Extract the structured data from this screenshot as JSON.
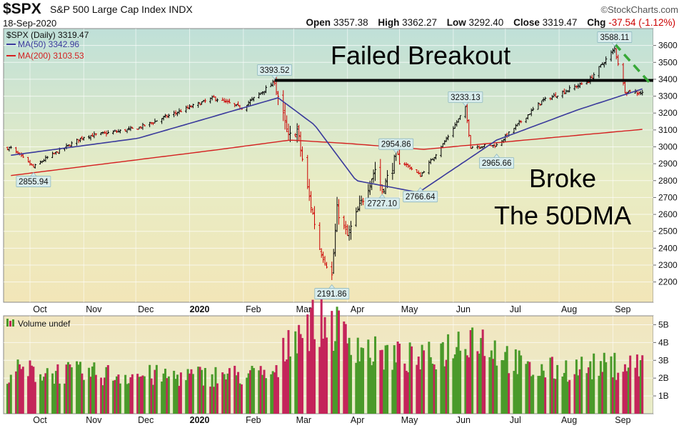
{
  "header": {
    "symbol": "$SPX",
    "name": "S&P 500 Large Cap Index",
    "exchange": "INDX",
    "date": "18-Sep-2020",
    "brand": "©StockCharts.com",
    "open_label": "Open",
    "open": "3357.38",
    "high_label": "High",
    "high": "3362.27",
    "low_label": "Low",
    "low": "3292.40",
    "close_label": "Close",
    "close": "3319.47",
    "chg_label": "Chg",
    "chg": "-37.54 (-1.12%)"
  },
  "legend": {
    "price": "$SPX (Daily) 3319.47",
    "ma50": "MA(50) 3342.96",
    "ma200": "MA(200) 3103.53",
    "volume": "Volume undef"
  },
  "annotations": {
    "failed_breakout": "Failed Breakout",
    "broke_line1": "Broke",
    "broke_line2": "The 50DMA"
  },
  "colors": {
    "up": "#000000",
    "down": "#cc0000",
    "ma50": "#3a3a9c",
    "ma200": "#d42020",
    "vol_up": "#4a9a2a",
    "vol_down": "#c4245a",
    "trend": "#38a838"
  },
  "chart_data": [
    {
      "type": "candlestick",
      "title": "$SPX (Daily)",
      "y_axis_side": "right",
      "ylim": [
        2080,
        3700
      ],
      "y_ticks": [
        2200,
        2300,
        2400,
        2500,
        2600,
        2700,
        2800,
        2900,
        3000,
        3100,
        3200,
        3300,
        3400,
        3500,
        3600
      ],
      "x_tick_labels": [
        "Oct",
        "Nov",
        "Dec",
        "2020",
        "Feb",
        "Mar",
        "Apr",
        "May",
        "Jun",
        "Jul",
        "Aug",
        "Sep"
      ],
      "price_points": [
        {
          "date": "2019-09-20",
          "close": 2992
        },
        {
          "date": "2019-10-03",
          "close": 2880
        },
        {
          "date": "2019-10-10",
          "close": 2930
        },
        {
          "date": "2019-11-01",
          "close": 3060
        },
        {
          "date": "2019-12-02",
          "close": 3110
        },
        {
          "date": "2019-12-31",
          "close": 3230
        },
        {
          "date": "2020-01-15",
          "close": 3290
        },
        {
          "date": "2020-01-31",
          "close": 3230
        },
        {
          "date": "2020-02-19",
          "close": 3385
        },
        {
          "date": "2020-02-27",
          "close": 3050
        },
        {
          "date": "2020-03-03",
          "close": 3100
        },
        {
          "date": "2020-03-09",
          "close": 2750
        },
        {
          "date": "2020-03-16",
          "close": 2400
        },
        {
          "date": "2020-03-23",
          "close": 2237
        },
        {
          "date": "2020-03-26",
          "close": 2630
        },
        {
          "date": "2020-04-01",
          "close": 2470
        },
        {
          "date": "2020-04-17",
          "close": 2870
        },
        {
          "date": "2020-04-21",
          "close": 2740
        },
        {
          "date": "2020-04-29",
          "close": 2940
        },
        {
          "date": "2020-05-13",
          "close": 2830
        },
        {
          "date": "2020-05-27",
          "close": 3030
        },
        {
          "date": "2020-06-08",
          "close": 3230
        },
        {
          "date": "2020-06-11",
          "close": 3000
        },
        {
          "date": "2020-06-26",
          "close": 3010
        },
        {
          "date": "2020-07-22",
          "close": 3270
        },
        {
          "date": "2020-08-18",
          "close": 3390
        },
        {
          "date": "2020-09-02",
          "close": 3580
        },
        {
          "date": "2020-09-08",
          "close": 3330
        },
        {
          "date": "2020-09-18",
          "close": 3319
        }
      ],
      "ma50_points": [
        {
          "date": "2019-09-20",
          "value": 2950
        },
        {
          "date": "2019-12-02",
          "value": 3050
        },
        {
          "date": "2020-02-21",
          "value": 3290
        },
        {
          "date": "2020-03-13",
          "value": 3130
        },
        {
          "date": "2020-04-06",
          "value": 2800
        },
        {
          "date": "2020-05-12",
          "value": 2730
        },
        {
          "date": "2020-06-26",
          "value": 3040
        },
        {
          "date": "2020-08-12",
          "value": 3220
        },
        {
          "date": "2020-09-18",
          "value": 3342.96
        }
      ],
      "ma200_points": [
        {
          "date": "2019-09-20",
          "value": 2830
        },
        {
          "date": "2020-01-15",
          "value": 2980
        },
        {
          "date": "2020-02-28",
          "value": 3040
        },
        {
          "date": "2020-04-01",
          "value": 3020
        },
        {
          "date": "2020-05-15",
          "value": 2985
        },
        {
          "date": "2020-09-18",
          "value": 3103.53
        }
      ],
      "labels": [
        {
          "date": "2019-10-03",
          "value": "2855.94"
        },
        {
          "date": "2020-02-19",
          "value": "3393.52"
        },
        {
          "date": "2020-03-23",
          "value": "2191.86"
        },
        {
          "date": "2020-04-21",
          "value": "2727.10"
        },
        {
          "date": "2020-04-29",
          "value": "2954.86"
        },
        {
          "date": "2020-05-13",
          "value": "2766.64"
        },
        {
          "date": "2020-06-08",
          "value": "3233.13"
        },
        {
          "date": "2020-06-26",
          "value": "2965.66"
        },
        {
          "date": "2020-09-02",
          "value": "3588.11"
        }
      ],
      "breakout_level": 3393.52
    },
    {
      "type": "bar",
      "title": "Volume",
      "y_tick_labels": [
        "1B",
        "2B",
        "3B",
        "4B",
        "5B"
      ],
      "y_ticks": [
        1,
        2,
        3,
        4,
        5
      ],
      "ylim": [
        0,
        5.5
      ],
      "volume_points": [
        {
          "date": "2019-09-20",
          "value": 2.4
        },
        {
          "date": "2019-12-20",
          "value": 2.1
        },
        {
          "date": "2020-02-20",
          "value": 2.2
        },
        {
          "date": "2020-02-28",
          "value": 4.5
        },
        {
          "date": "2020-03-12",
          "value": 5.1
        },
        {
          "date": "2020-03-20",
          "value": 5.2
        },
        {
          "date": "2020-04-15",
          "value": 3.4
        },
        {
          "date": "2020-05-15",
          "value": 3.0
        },
        {
          "date": "2020-06-12",
          "value": 4.5
        },
        {
          "date": "2020-07-15",
          "value": 2.4
        },
        {
          "date": "2020-09-18",
          "value": 2.8
        }
      ]
    }
  ]
}
